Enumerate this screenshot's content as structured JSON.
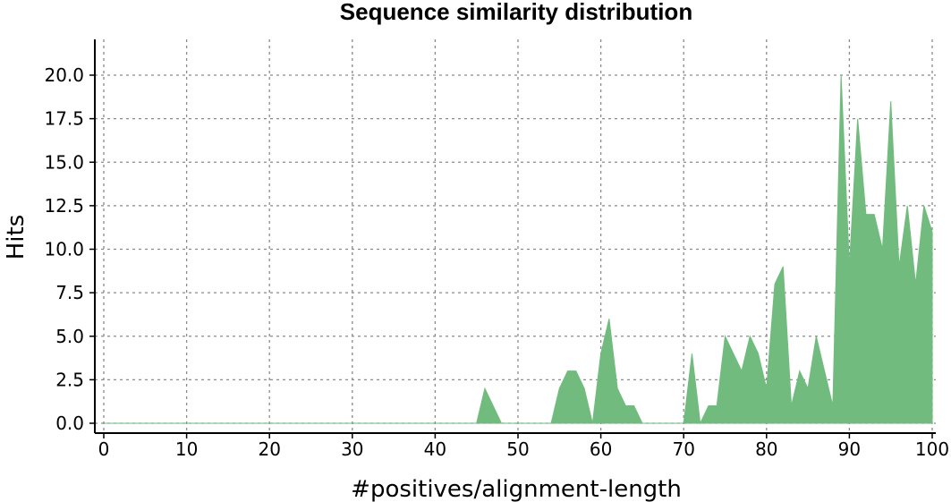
{
  "chart_data": {
    "type": "area",
    "title": "Sequence similarity distribution",
    "xlabel": "#positives/alignment-length",
    "ylabel": "Hits",
    "xlim": [
      0,
      100
    ],
    "ylim": [
      0,
      20
    ],
    "xticks": [
      0,
      10,
      20,
      30,
      40,
      50,
      60,
      70,
      80,
      90,
      100
    ],
    "yticks": [
      0.0,
      2.5,
      5.0,
      7.5,
      10.0,
      12.5,
      15.0,
      17.5,
      20.0
    ],
    "xtick_labels": [
      "0",
      "10",
      "20",
      "30",
      "40",
      "50",
      "60",
      "70",
      "80",
      "90",
      "100"
    ],
    "ytick_labels": [
      "0.0",
      "2.5",
      "5.0",
      "7.5",
      "10.0",
      "12.5",
      "15.0",
      "17.5",
      "20.0"
    ],
    "grid": true,
    "legend": false,
    "series": [
      {
        "color": "#72bb7e",
        "x": [
          0,
          45,
          46,
          47,
          48,
          54,
          55,
          56,
          57,
          58,
          59,
          60,
          61,
          62,
          63,
          64,
          65,
          70,
          71,
          72,
          73,
          74,
          75,
          76,
          77,
          78,
          79,
          80,
          81,
          82,
          83,
          84,
          85,
          86,
          87,
          88,
          89,
          90,
          91,
          92,
          93,
          94,
          95,
          96,
          97,
          98,
          99,
          100
        ],
        "y": [
          0,
          0,
          2,
          1,
          0,
          0,
          2,
          3,
          3,
          2,
          0,
          4,
          6,
          2,
          1,
          1,
          0,
          0,
          4,
          0,
          1,
          1,
          5,
          4,
          3,
          5,
          4,
          2,
          8,
          9,
          1,
          3,
          2,
          5,
          3,
          1,
          20,
          9,
          17.5,
          12,
          12,
          10,
          18.5,
          9,
          12.5,
          8,
          12.5,
          11
        ]
      }
    ]
  }
}
